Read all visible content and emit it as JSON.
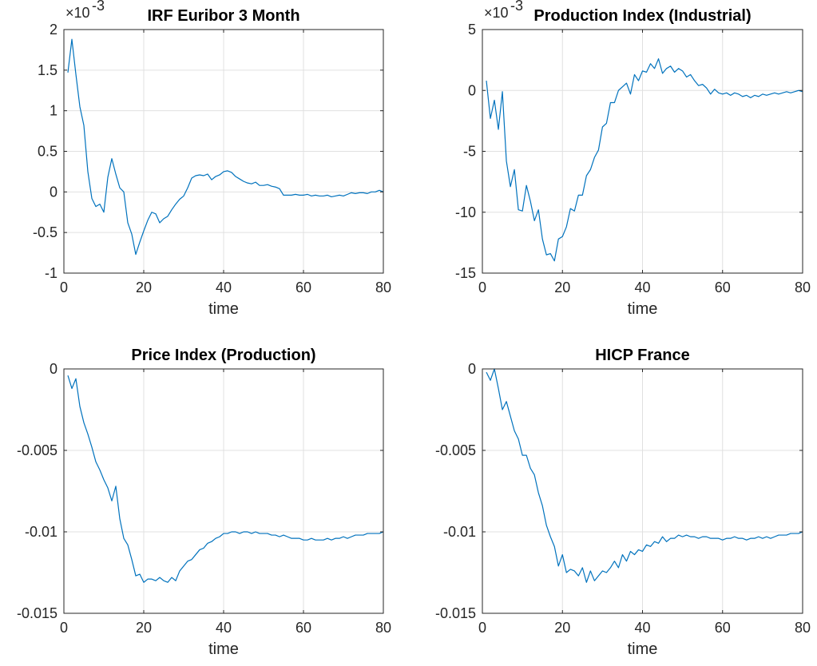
{
  "figure": {
    "background": "#ffffff",
    "line_color": "#0072bd",
    "grid_color": "#e0e0e0",
    "axes_color": "#262626"
  },
  "chart_data": [
    {
      "type": "line",
      "title": "IRF Euribor 3 Month",
      "xlabel": "time",
      "ylabel": "",
      "exponent_label": {
        "base": "×10",
        "power": "-3"
      },
      "xlim": [
        0,
        80
      ],
      "ylim": [
        -1,
        2
      ],
      "xticks": [
        0,
        20,
        40,
        60,
        80
      ],
      "xtick_labels": [
        "0",
        "20",
        "40",
        "60",
        "80"
      ],
      "yticks": [
        -1,
        -0.5,
        0,
        0.5,
        1,
        1.5,
        2
      ],
      "ytick_labels": [
        "-1",
        "-0.5",
        "0",
        "0.5",
        "1",
        "1.5",
        "2"
      ],
      "grid": true,
      "series": [
        {
          "x": [
            1,
            2,
            3,
            4,
            5,
            6,
            7,
            8,
            9,
            10,
            11,
            12,
            13,
            14,
            15,
            16,
            17,
            18,
            19,
            20,
            21,
            22,
            23,
            24,
            25,
            26,
            27,
            28,
            29,
            30,
            31,
            32,
            33,
            34,
            35,
            36,
            37,
            38,
            39,
            40,
            41,
            42,
            43,
            44,
            45,
            46,
            47,
            48,
            49,
            50,
            51,
            52,
            53,
            54,
            55,
            56,
            57,
            58,
            59,
            60,
            61,
            62,
            63,
            64,
            65,
            66,
            67,
            68,
            69,
            70,
            71,
            72,
            73,
            74,
            75,
            76,
            77,
            78,
            79,
            80
          ],
          "y": [
            1.47,
            1.88,
            1.45,
            1.05,
            0.82,
            0.25,
            -0.08,
            -0.18,
            -0.15,
            -0.25,
            0.18,
            0.41,
            0.22,
            0.05,
            0.0,
            -0.38,
            -0.52,
            -0.77,
            -0.62,
            -0.48,
            -0.35,
            -0.25,
            -0.27,
            -0.38,
            -0.33,
            -0.3,
            -0.22,
            -0.15,
            -0.09,
            -0.05,
            0.05,
            0.17,
            0.2,
            0.21,
            0.2,
            0.22,
            0.15,
            0.19,
            0.21,
            0.25,
            0.26,
            0.24,
            0.19,
            0.16,
            0.13,
            0.11,
            0.1,
            0.12,
            0.08,
            0.08,
            0.09,
            0.07,
            0.06,
            0.04,
            -0.04,
            -0.04,
            -0.04,
            -0.03,
            -0.04,
            -0.04,
            -0.03,
            -0.05,
            -0.04,
            -0.05,
            -0.05,
            -0.04,
            -0.06,
            -0.05,
            -0.04,
            -0.05,
            -0.03,
            -0.01,
            -0.02,
            -0.01,
            -0.01,
            -0.02,
            0.0,
            0.0,
            0.02,
            0.0
          ]
        }
      ]
    },
    {
      "type": "line",
      "title": "Production Index (Industrial)",
      "xlabel": "time",
      "ylabel": "",
      "exponent_label": {
        "base": "×10",
        "power": "-3"
      },
      "xlim": [
        0,
        80
      ],
      "ylim": [
        -15,
        5
      ],
      "xticks": [
        0,
        20,
        40,
        60,
        80
      ],
      "xtick_labels": [
        "0",
        "20",
        "40",
        "60",
        "80"
      ],
      "yticks": [
        -15,
        -10,
        -5,
        0,
        5
      ],
      "ytick_labels": [
        "-15",
        "-10",
        "-5",
        "0",
        "5"
      ],
      "grid": true,
      "series": [
        {
          "x": [
            1,
            2,
            3,
            4,
            5,
            6,
            7,
            8,
            9,
            10,
            11,
            12,
            13,
            14,
            15,
            16,
            17,
            18,
            19,
            20,
            21,
            22,
            23,
            24,
            25,
            26,
            27,
            28,
            29,
            30,
            31,
            32,
            33,
            34,
            35,
            36,
            37,
            38,
            39,
            40,
            41,
            42,
            43,
            44,
            45,
            46,
            47,
            48,
            49,
            50,
            51,
            52,
            53,
            54,
            55,
            56,
            57,
            58,
            59,
            60,
            61,
            62,
            63,
            64,
            65,
            66,
            67,
            68,
            69,
            70,
            71,
            72,
            73,
            74,
            75,
            76,
            77,
            78,
            79,
            80
          ],
          "y": [
            0.8,
            -2.3,
            -0.8,
            -3.2,
            -0.1,
            -5.8,
            -7.9,
            -6.5,
            -9.8,
            -9.9,
            -7.8,
            -9.1,
            -10.7,
            -9.8,
            -12.2,
            -13.5,
            -13.4,
            -14.0,
            -12.2,
            -12.0,
            -11.2,
            -9.7,
            -9.9,
            -8.6,
            -8.6,
            -7.0,
            -6.5,
            -5.5,
            -4.9,
            -3.0,
            -2.7,
            -1.0,
            -1.0,
            0.0,
            0.3,
            0.6,
            -0.3,
            1.3,
            0.8,
            1.6,
            1.5,
            2.2,
            1.8,
            2.6,
            1.4,
            1.8,
            2.0,
            1.5,
            1.8,
            1.6,
            1.1,
            1.3,
            0.8,
            0.4,
            0.5,
            0.2,
            -0.3,
            0.1,
            -0.2,
            -0.3,
            -0.2,
            -0.4,
            -0.2,
            -0.3,
            -0.5,
            -0.4,
            -0.6,
            -0.4,
            -0.5,
            -0.3,
            -0.4,
            -0.3,
            -0.2,
            -0.3,
            -0.2,
            -0.1,
            -0.2,
            -0.1,
            0.0,
            -0.1
          ]
        }
      ]
    },
    {
      "type": "line",
      "title": "Price Index (Production)",
      "xlabel": "time",
      "ylabel": "",
      "xlim": [
        0,
        80
      ],
      "ylim": [
        -0.015,
        0
      ],
      "xticks": [
        0,
        20,
        40,
        60,
        80
      ],
      "xtick_labels": [
        "0",
        "20",
        "40",
        "60",
        "80"
      ],
      "yticks": [
        -0.015,
        -0.01,
        -0.005,
        0
      ],
      "ytick_labels": [
        "-0.015",
        "-0.01",
        "-0.005",
        "0"
      ],
      "grid": true,
      "series": [
        {
          "x": [
            1,
            2,
            3,
            4,
            5,
            6,
            7,
            8,
            9,
            10,
            11,
            12,
            13,
            14,
            15,
            16,
            17,
            18,
            19,
            20,
            21,
            22,
            23,
            24,
            25,
            26,
            27,
            28,
            29,
            30,
            31,
            32,
            33,
            34,
            35,
            36,
            37,
            38,
            39,
            40,
            41,
            42,
            43,
            44,
            45,
            46,
            47,
            48,
            49,
            50,
            51,
            52,
            53,
            54,
            55,
            56,
            57,
            58,
            59,
            60,
            61,
            62,
            63,
            64,
            65,
            66,
            67,
            68,
            69,
            70,
            71,
            72,
            73,
            74,
            75,
            76,
            77,
            78,
            79,
            80
          ],
          "y": [
            -0.0004,
            -0.0012,
            -0.0006,
            -0.0023,
            -0.0033,
            -0.004,
            -0.0048,
            -0.0057,
            -0.0062,
            -0.0068,
            -0.0073,
            -0.0081,
            -0.0072,
            -0.0092,
            -0.0104,
            -0.0108,
            -0.0117,
            -0.0127,
            -0.0126,
            -0.0131,
            -0.0129,
            -0.0129,
            -0.013,
            -0.0128,
            -0.013,
            -0.0131,
            -0.0128,
            -0.013,
            -0.0124,
            -0.0121,
            -0.0118,
            -0.0117,
            -0.0114,
            -0.0111,
            -0.011,
            -0.0107,
            -0.0106,
            -0.0104,
            -0.0103,
            -0.0101,
            -0.0101,
            -0.01,
            -0.01,
            -0.0101,
            -0.01,
            -0.01,
            -0.0101,
            -0.01,
            -0.0101,
            -0.0101,
            -0.0101,
            -0.0102,
            -0.0102,
            -0.0103,
            -0.0102,
            -0.0103,
            -0.0104,
            -0.0104,
            -0.0104,
            -0.0105,
            -0.0105,
            -0.0104,
            -0.0105,
            -0.0105,
            -0.0105,
            -0.0104,
            -0.0105,
            -0.0104,
            -0.0104,
            -0.0103,
            -0.0104,
            -0.0103,
            -0.0102,
            -0.0102,
            -0.0102,
            -0.0101,
            -0.0101,
            -0.0101,
            -0.0101,
            -0.01
          ]
        }
      ]
    },
    {
      "type": "line",
      "title": "HICP France",
      "xlabel": "time",
      "ylabel": "",
      "xlim": [
        0,
        80
      ],
      "ylim": [
        -0.015,
        0
      ],
      "xticks": [
        0,
        20,
        40,
        60,
        80
      ],
      "xtick_labels": [
        "0",
        "20",
        "40",
        "60",
        "80"
      ],
      "yticks": [
        -0.015,
        -0.01,
        -0.005,
        0
      ],
      "ytick_labels": [
        "-0.015",
        "-0.01",
        "-0.005",
        "0"
      ],
      "grid": true,
      "series": [
        {
          "x": [
            1,
            2,
            3,
            4,
            5,
            6,
            7,
            8,
            9,
            10,
            11,
            12,
            13,
            14,
            15,
            16,
            17,
            18,
            19,
            20,
            21,
            22,
            23,
            24,
            25,
            26,
            27,
            28,
            29,
            30,
            31,
            32,
            33,
            34,
            35,
            36,
            37,
            38,
            39,
            40,
            41,
            42,
            43,
            44,
            45,
            46,
            47,
            48,
            49,
            50,
            51,
            52,
            53,
            54,
            55,
            56,
            57,
            58,
            59,
            60,
            61,
            62,
            63,
            64,
            65,
            66,
            67,
            68,
            69,
            70,
            71,
            72,
            73,
            74,
            75,
            76,
            77,
            78,
            79,
            80
          ],
          "y": [
            -0.0002,
            -0.0007,
            0.0,
            -0.0012,
            -0.0025,
            -0.002,
            -0.0029,
            -0.0038,
            -0.0043,
            -0.0053,
            -0.0053,
            -0.0061,
            -0.0065,
            -0.0076,
            -0.0084,
            -0.0096,
            -0.0103,
            -0.0109,
            -0.0121,
            -0.0114,
            -0.0125,
            -0.0123,
            -0.0124,
            -0.0127,
            -0.0122,
            -0.0131,
            -0.0124,
            -0.013,
            -0.0127,
            -0.0124,
            -0.0125,
            -0.0122,
            -0.0118,
            -0.0122,
            -0.0114,
            -0.0118,
            -0.0112,
            -0.0114,
            -0.0111,
            -0.0112,
            -0.0108,
            -0.0109,
            -0.0106,
            -0.0107,
            -0.0103,
            -0.0106,
            -0.0104,
            -0.0104,
            -0.0102,
            -0.0103,
            -0.0102,
            -0.0103,
            -0.0103,
            -0.0104,
            -0.0103,
            -0.0103,
            -0.0104,
            -0.0104,
            -0.0104,
            -0.0105,
            -0.0104,
            -0.0104,
            -0.0103,
            -0.0104,
            -0.0104,
            -0.0105,
            -0.0104,
            -0.0104,
            -0.0103,
            -0.0104,
            -0.0103,
            -0.0104,
            -0.0103,
            -0.0102,
            -0.0102,
            -0.0102,
            -0.0101,
            -0.0101,
            -0.0101,
            -0.01
          ]
        }
      ]
    }
  ]
}
